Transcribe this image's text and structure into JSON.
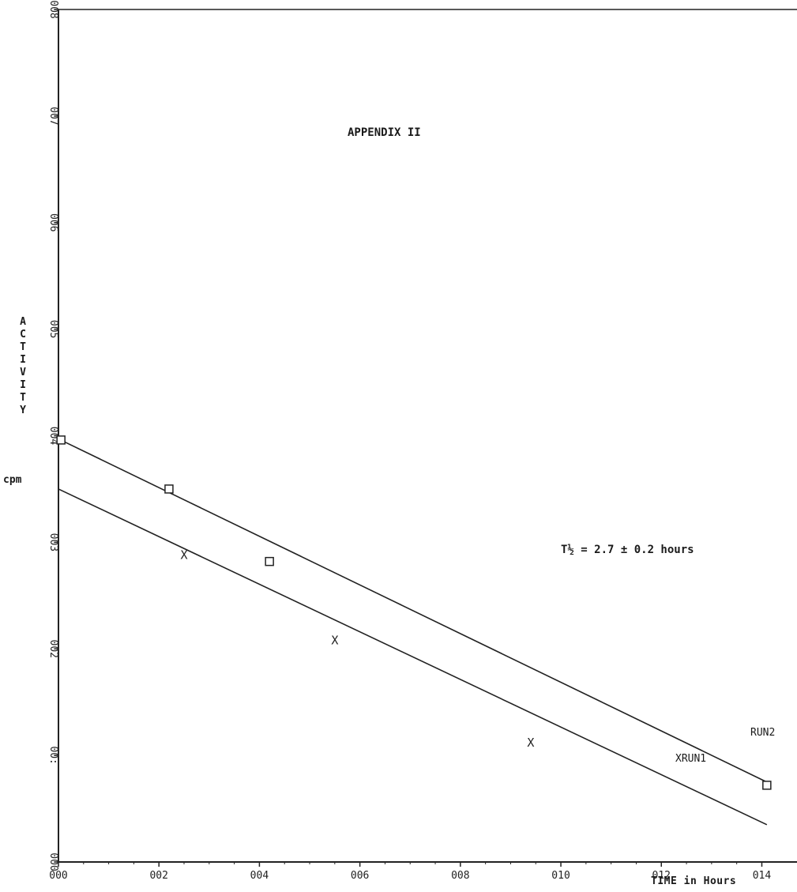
{
  "chart_data": {
    "type": "scatter",
    "title": "APPENDIX II",
    "xlabel": "TIME in Hours",
    "ylabel": "ACTIVITY",
    "ylabel_unit": "cpm",
    "x_ticks": [
      "000",
      "002",
      "004",
      "006",
      "008",
      "010",
      "012",
      "014"
    ],
    "y_ticks": [
      "000",
      "001",
      "002",
      "003",
      "004",
      "005",
      "006",
      "007",
      "008"
    ],
    "y_tick_labels_as_printed": [
      "000",
      "00:",
      "002",
      "003",
      "004",
      "005",
      "006",
      "007",
      "008"
    ],
    "xlim": [
      0,
      14.7
    ],
    "ylim": [
      0,
      8
    ],
    "grid": false,
    "annotation": "T½ = 2.7 ± 0.2 hours",
    "series": [
      {
        "name": "RUN1",
        "marker": "X",
        "points": [
          [
            2.5,
            2.88
          ],
          [
            5.5,
            2.08
          ],
          [
            9.4,
            1.12
          ]
        ],
        "fit_line": {
          "x": [
            0,
            14.1
          ],
          "y": [
            3.5,
            0.35
          ]
        }
      },
      {
        "name": "RUN2",
        "marker": "square",
        "points": [
          [
            0.05,
            3.96
          ],
          [
            2.2,
            3.5
          ],
          [
            4.2,
            2.82
          ],
          [
            14.1,
            0.72
          ]
        ],
        "fit_line": {
          "x": [
            0,
            14.1
          ],
          "y": [
            3.97,
            0.75
          ]
        }
      }
    ],
    "series_labels": {
      "RUN1": "XRUN1",
      "RUN2": "RUN2"
    }
  }
}
